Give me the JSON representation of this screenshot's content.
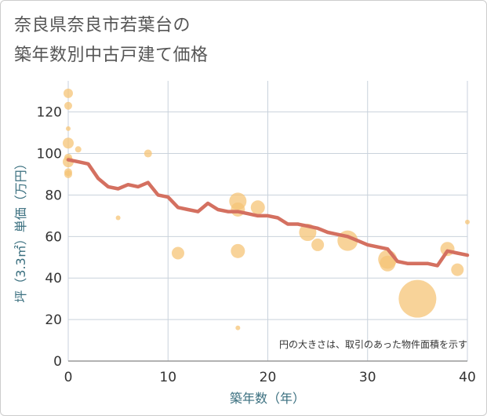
{
  "chart_data": {
    "type": "scatter+line",
    "title_line1": "奈良県奈良市若葉台の",
    "title_line2": "築年数別中古戸建て価格",
    "xlabel": "築年数（年）",
    "ylabel": "坪（3.3㎡）単価（万円）",
    "note": "円の大きさは、取引のあった物件面積を示す",
    "xlim": [
      0,
      40
    ],
    "ylim": [
      0,
      135
    ],
    "xticks": [
      0,
      10,
      20,
      30,
      40
    ],
    "yticks": [
      0,
      20,
      40,
      60,
      80,
      100,
      120
    ],
    "grid": true,
    "colors": {
      "bubble": "#f5c477",
      "line": "#d47060",
      "grid": "#c9d2dc",
      "axis_text": "#3a6f7f"
    },
    "bubbles": [
      {
        "x": 0,
        "y": 129,
        "size": 6
      },
      {
        "x": 0,
        "y": 123,
        "size": 5
      },
      {
        "x": 0,
        "y": 112,
        "size": 3
      },
      {
        "x": 0,
        "y": 105,
        "size": 7
      },
      {
        "x": 1,
        "y": 102,
        "size": 4
      },
      {
        "x": 0,
        "y": 98,
        "size": 5
      },
      {
        "x": 0,
        "y": 96,
        "size": 7
      },
      {
        "x": 0,
        "y": 91,
        "size": 5
      },
      {
        "x": 0,
        "y": 90,
        "size": 5
      },
      {
        "x": 5,
        "y": 69,
        "size": 3
      },
      {
        "x": 8,
        "y": 100,
        "size": 5
      },
      {
        "x": 11,
        "y": 52,
        "size": 8
      },
      {
        "x": 17,
        "y": 77,
        "size": 11
      },
      {
        "x": 17,
        "y": 73,
        "size": 9
      },
      {
        "x": 17,
        "y": 53,
        "size": 9
      },
      {
        "x": 17,
        "y": 16,
        "size": 3
      },
      {
        "x": 19,
        "y": 74,
        "size": 9
      },
      {
        "x": 24,
        "y": 62,
        "size": 11
      },
      {
        "x": 25,
        "y": 56,
        "size": 8
      },
      {
        "x": 28,
        "y": 58,
        "size": 13
      },
      {
        "x": 32,
        "y": 49,
        "size": 12
      },
      {
        "x": 32,
        "y": 47,
        "size": 10
      },
      {
        "x": 35,
        "y": 30,
        "size": 24
      },
      {
        "x": 38,
        "y": 54,
        "size": 9
      },
      {
        "x": 39,
        "y": 44,
        "size": 8
      },
      {
        "x": 40,
        "y": 67,
        "size": 3
      }
    ],
    "line": {
      "x": [
        0,
        1,
        2,
        3,
        4,
        5,
        6,
        7,
        8,
        9,
        10,
        11,
        12,
        13,
        14,
        15,
        16,
        17,
        18,
        19,
        20,
        21,
        22,
        23,
        24,
        25,
        26,
        27,
        28,
        29,
        30,
        31,
        32,
        33,
        34,
        35,
        36,
        37,
        38,
        39,
        40
      ],
      "y": [
        97,
        96,
        95,
        88,
        84,
        83,
        85,
        84,
        86,
        80,
        79,
        74,
        73,
        72,
        76,
        73,
        72,
        72,
        71,
        70,
        70,
        69,
        66,
        66,
        65,
        64,
        62,
        61,
        60,
        58,
        56,
        55,
        54,
        48,
        47,
        47,
        47,
        46,
        53,
        52,
        51
      ]
    }
  }
}
